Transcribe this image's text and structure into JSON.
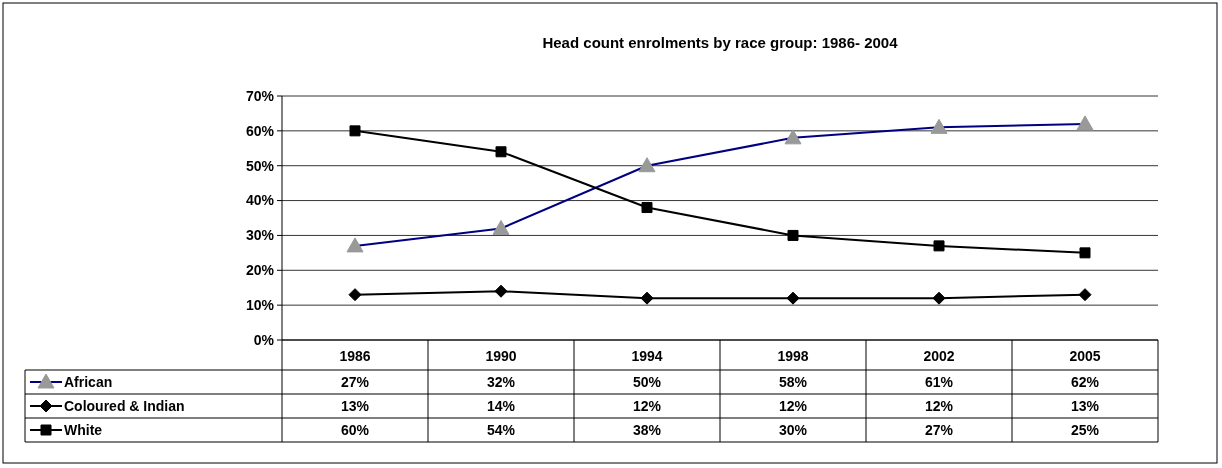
{
  "chart_data": {
    "type": "line",
    "title": "Head count enrolments by race group: 1986- 2004",
    "categories": [
      "1986",
      "1990",
      "1994",
      "1998",
      "2002",
      "2005"
    ],
    "series": [
      {
        "name": "African",
        "color": "#000080",
        "values": [
          27,
          32,
          50,
          58,
          61,
          62
        ],
        "marker": "triangle"
      },
      {
        "name": "Coloured & Indian",
        "color": "#000000",
        "values": [
          13,
          14,
          12,
          12,
          12,
          13
        ],
        "marker": "diamond"
      },
      {
        "name": "White",
        "color": "#000000",
        "values": [
          60,
          54,
          38,
          30,
          27,
          25
        ],
        "marker": "square"
      }
    ],
    "value_labels": [
      [
        "27%",
        "32%",
        "50%",
        "58%",
        "61%",
        "62%"
      ],
      [
        "13%",
        "14%",
        "12%",
        "12%",
        "12%",
        "13%"
      ],
      [
        "60%",
        "54%",
        "38%",
        "30%",
        "27%",
        "25%"
      ]
    ],
    "ylim": [
      0,
      70
    ],
    "yticks": [
      {
        "value": 0,
        "label": "0%"
      },
      {
        "value": 10,
        "label": "10%"
      },
      {
        "value": 20,
        "label": "20%"
      },
      {
        "value": 30,
        "label": "30%"
      },
      {
        "value": 40,
        "label": "40%"
      },
      {
        "value": 50,
        "label": "50%"
      },
      {
        "value": 60,
        "label": "60%"
      },
      {
        "value": 70,
        "label": "70%"
      }
    ],
    "grid": "y",
    "legend": "bottom left"
  }
}
